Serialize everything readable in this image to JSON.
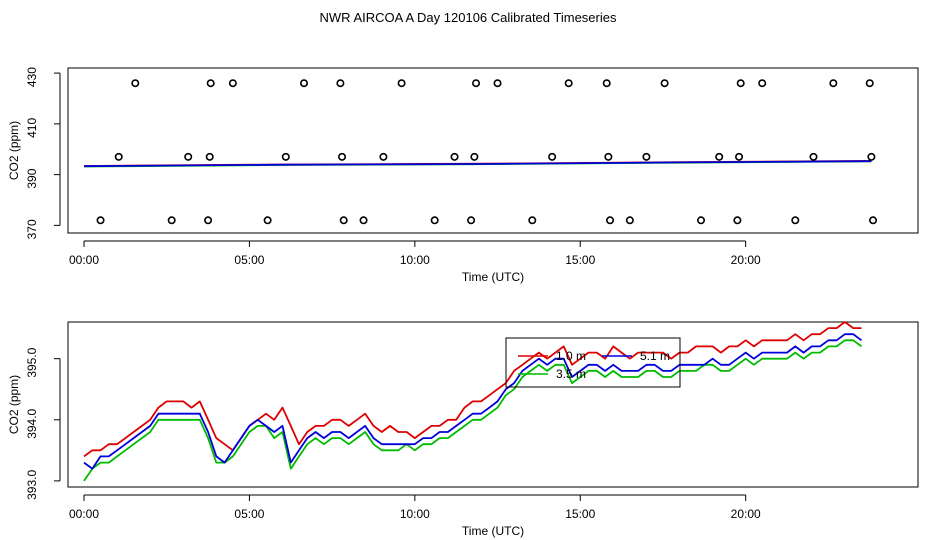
{
  "title": "NWR AIRCOA A  Day 120106  Calibrated Timeseries",
  "chart_data": [
    {
      "type": "scatter+line",
      "title": "NWR AIRCOA A  Day 120106  Calibrated Timeseries",
      "xlabel": "Time (UTC)",
      "ylabel": "CO2 (ppm)",
      "xlim": [
        0,
        24
      ],
      "ylim": [
        367,
        432
      ],
      "xticks": [
        0,
        5,
        10,
        15,
        20
      ],
      "xtick_labels": [
        "00:00",
        "05:00",
        "10:00",
        "15:00",
        "20:00"
      ],
      "yticks": [
        370,
        390,
        410,
        430
      ],
      "ytick_labels": [
        "370",
        "390",
        "410",
        "430"
      ],
      "calibration_points": {
        "marker": "open-circle",
        "x": [
          0.5,
          1.05,
          1.55,
          2.65,
          3.15,
          3.75,
          3.8,
          3.83,
          4.5,
          5.55,
          6.1,
          6.65,
          7.75,
          7.8,
          7.85,
          8.45,
          9.05,
          9.6,
          10.6,
          11.2,
          11.7,
          11.8,
          11.85,
          12.5,
          13.55,
          14.15,
          14.65,
          15.8,
          15.85,
          15.9,
          16.5,
          17.0,
          17.55,
          18.65,
          19.2,
          19.75,
          19.8,
          19.85,
          20.5,
          21.5,
          22.05,
          22.65,
          23.75,
          23.8,
          23.85
        ],
        "y": [
          372,
          397,
          426,
          372,
          397,
          372,
          397,
          426,
          426,
          372,
          397,
          426,
          426,
          397,
          372,
          372,
          397,
          426,
          372,
          397,
          372,
          397,
          426,
          426,
          372,
          397,
          426,
          426,
          397,
          372,
          372,
          397,
          426,
          372,
          397,
          372,
          397,
          426,
          426,
          372,
          397,
          426,
          426,
          397,
          372
        ]
      },
      "series": [
        {
          "name": "1.0 m",
          "color": "#dd0000",
          "x": [
            0,
            6,
            12,
            18,
            23.8
          ],
          "y": [
            393.4,
            394.0,
            394.3,
            394.9,
            395.4
          ]
        },
        {
          "name": "3.5 m",
          "color": "#00bb00",
          "x": [
            0,
            6,
            12,
            18,
            23.8
          ],
          "y": [
            393.2,
            393.8,
            394.1,
            394.7,
            395.2
          ]
        },
        {
          "name": "5.1 m",
          "color": "#0000dd",
          "x": [
            0,
            6,
            12,
            18,
            23.8
          ],
          "y": [
            393.3,
            393.9,
            394.2,
            394.8,
            395.3
          ]
        }
      ]
    },
    {
      "type": "line",
      "xlabel": "Time (UTC)",
      "ylabel": "CO2 (ppm)",
      "xlim": [
        0,
        24
      ],
      "ylim": [
        392.9,
        395.6
      ],
      "xticks": [
        0,
        5,
        10,
        15,
        20
      ],
      "xtick_labels": [
        "00:00",
        "05:00",
        "10:00",
        "15:00",
        "20:00"
      ],
      "yticks": [
        393.0,
        394.0,
        395.0
      ],
      "ytick_labels": [
        "393.0",
        "394.0",
        "395.0"
      ],
      "legend": {
        "position": "top-center",
        "entries": [
          "1.0 m",
          "3.5 m",
          "5.1 m"
        ]
      },
      "series": [
        {
          "name": "1.0 m",
          "color": "#dd0000",
          "x": [
            0.0,
            0.25,
            0.5,
            0.75,
            1.0,
            1.25,
            1.5,
            1.75,
            2.0,
            2.25,
            2.5,
            2.75,
            3.0,
            3.25,
            3.5,
            3.75,
            4.0,
            4.25,
            4.5,
            4.75,
            5.0,
            5.25,
            5.5,
            5.75,
            6.0,
            6.25,
            6.5,
            6.75,
            7.0,
            7.25,
            7.5,
            7.75,
            8.0,
            8.25,
            8.5,
            8.75,
            9.0,
            9.25,
            9.5,
            9.75,
            10.0,
            10.25,
            10.5,
            10.75,
            11.0,
            11.25,
            11.5,
            11.75,
            12.0,
            12.25,
            12.5,
            12.75,
            13.0,
            13.25,
            13.5,
            13.75,
            14.0,
            14.25,
            14.5,
            14.75,
            15.0,
            15.25,
            15.5,
            15.75,
            16.0,
            16.25,
            16.5,
            16.75,
            17.0,
            17.25,
            17.5,
            17.75,
            18.0,
            18.25,
            18.5,
            18.75,
            19.0,
            19.25,
            19.5,
            19.75,
            20.0,
            20.25,
            20.5,
            20.75,
            21.0,
            21.25,
            21.5,
            21.75,
            22.0,
            22.25,
            22.5,
            22.75,
            23.0,
            23.25,
            23.5
          ],
          "y": [
            393.4,
            393.5,
            393.5,
            393.6,
            393.6,
            393.7,
            393.8,
            393.9,
            394.0,
            394.2,
            394.3,
            394.3,
            394.3,
            394.2,
            394.3,
            394.0,
            393.7,
            393.6,
            393.5,
            393.7,
            393.9,
            394.0,
            394.1,
            394.0,
            394.2,
            393.9,
            393.6,
            393.8,
            393.9,
            393.9,
            394.0,
            394.0,
            393.9,
            394.0,
            394.1,
            393.9,
            393.8,
            393.9,
            393.8,
            393.8,
            393.7,
            393.8,
            393.9,
            393.9,
            394.0,
            394.0,
            394.2,
            394.3,
            394.3,
            394.4,
            394.5,
            394.6,
            394.8,
            394.9,
            395.0,
            395.1,
            395.0,
            395.1,
            395.2,
            394.9,
            395.0,
            395.1,
            395.1,
            395.0,
            395.2,
            395.1,
            395.0,
            395.1,
            395.1,
            395.1,
            395.1,
            395.0,
            395.1,
            395.1,
            395.2,
            395.2,
            395.2,
            395.1,
            395.2,
            395.2,
            395.3,
            395.2,
            395.3,
            395.3,
            395.3,
            395.3,
            395.4,
            395.3,
            395.4,
            395.4,
            395.5,
            395.5,
            395.6,
            395.5,
            395.5
          ]
        },
        {
          "name": "3.5 m",
          "color": "#00bb00",
          "x": [
            0.0,
            0.25,
            0.5,
            0.75,
            1.0,
            1.25,
            1.5,
            1.75,
            2.0,
            2.25,
            2.5,
            2.75,
            3.0,
            3.25,
            3.5,
            3.75,
            4.0,
            4.25,
            4.5,
            4.75,
            5.0,
            5.25,
            5.5,
            5.75,
            6.0,
            6.25,
            6.5,
            6.75,
            7.0,
            7.25,
            7.5,
            7.75,
            8.0,
            8.25,
            8.5,
            8.75,
            9.0,
            9.25,
            9.5,
            9.75,
            10.0,
            10.25,
            10.5,
            10.75,
            11.0,
            11.25,
            11.5,
            11.75,
            12.0,
            12.25,
            12.5,
            12.75,
            13.0,
            13.25,
            13.5,
            13.75,
            14.0,
            14.25,
            14.5,
            14.75,
            15.0,
            15.25,
            15.5,
            15.75,
            16.0,
            16.25,
            16.5,
            16.75,
            17.0,
            17.25,
            17.5,
            17.75,
            18.0,
            18.25,
            18.5,
            18.75,
            19.0,
            19.25,
            19.5,
            19.75,
            20.0,
            20.25,
            20.5,
            20.75,
            21.0,
            21.25,
            21.5,
            21.75,
            22.0,
            22.25,
            22.5,
            22.75,
            23.0,
            23.25,
            23.5
          ],
          "y": [
            393.0,
            393.2,
            393.3,
            393.3,
            393.4,
            393.5,
            393.6,
            393.7,
            393.8,
            394.0,
            394.0,
            394.0,
            394.0,
            394.0,
            394.0,
            393.7,
            393.3,
            393.3,
            393.4,
            393.6,
            393.8,
            393.9,
            393.9,
            393.7,
            393.8,
            393.2,
            393.4,
            393.6,
            393.7,
            393.6,
            393.7,
            393.7,
            393.6,
            393.7,
            393.8,
            393.6,
            393.5,
            393.5,
            393.5,
            393.6,
            393.5,
            393.6,
            393.6,
            393.7,
            393.7,
            393.8,
            393.9,
            394.0,
            394.0,
            394.1,
            394.2,
            394.4,
            394.5,
            394.7,
            394.8,
            394.9,
            394.8,
            394.9,
            394.9,
            394.6,
            394.7,
            394.8,
            394.8,
            394.7,
            394.8,
            394.7,
            394.7,
            394.7,
            394.8,
            394.8,
            394.7,
            394.7,
            394.8,
            394.8,
            394.8,
            394.9,
            394.9,
            394.8,
            394.8,
            394.9,
            395.0,
            394.9,
            395.0,
            395.0,
            395.0,
            395.0,
            395.1,
            395.0,
            395.1,
            395.1,
            395.2,
            395.2,
            395.3,
            395.3,
            395.2
          ]
        },
        {
          "name": "5.1 m",
          "color": "#0000dd",
          "x": [
            0.0,
            0.25,
            0.5,
            0.75,
            1.0,
            1.25,
            1.5,
            1.75,
            2.0,
            2.25,
            2.5,
            2.75,
            3.0,
            3.25,
            3.5,
            3.75,
            4.0,
            4.25,
            4.5,
            4.75,
            5.0,
            5.25,
            5.5,
            5.75,
            6.0,
            6.25,
            6.5,
            6.75,
            7.0,
            7.25,
            7.5,
            7.75,
            8.0,
            8.25,
            8.5,
            8.75,
            9.0,
            9.25,
            9.5,
            9.75,
            10.0,
            10.25,
            10.5,
            10.75,
            11.0,
            11.25,
            11.5,
            11.75,
            12.0,
            12.25,
            12.5,
            12.75,
            13.0,
            13.25,
            13.5,
            13.75,
            14.0,
            14.25,
            14.5,
            14.75,
            15.0,
            15.25,
            15.5,
            15.75,
            16.0,
            16.25,
            16.5,
            16.75,
            17.0,
            17.25,
            17.5,
            17.75,
            18.0,
            18.25,
            18.5,
            18.75,
            19.0,
            19.25,
            19.5,
            19.75,
            20.0,
            20.25,
            20.5,
            20.75,
            21.0,
            21.25,
            21.5,
            21.75,
            22.0,
            22.25,
            22.5,
            22.75,
            23.0,
            23.25,
            23.5
          ],
          "y": [
            393.3,
            393.2,
            393.4,
            393.4,
            393.5,
            393.6,
            393.7,
            393.8,
            393.9,
            394.1,
            394.1,
            394.1,
            394.1,
            394.1,
            394.1,
            393.8,
            393.4,
            393.3,
            393.5,
            393.7,
            393.9,
            394.0,
            393.9,
            393.8,
            393.9,
            393.3,
            393.5,
            393.7,
            393.8,
            393.7,
            393.8,
            393.8,
            393.7,
            393.8,
            393.9,
            393.7,
            393.6,
            393.6,
            393.6,
            393.6,
            393.6,
            393.7,
            393.7,
            393.8,
            393.8,
            393.9,
            394.0,
            394.1,
            394.1,
            394.2,
            394.3,
            394.5,
            394.6,
            394.8,
            394.9,
            395.0,
            394.9,
            395.0,
            395.0,
            394.7,
            394.8,
            394.9,
            394.9,
            394.8,
            394.9,
            394.8,
            394.8,
            394.8,
            394.9,
            394.9,
            394.8,
            394.8,
            394.9,
            394.9,
            394.9,
            394.9,
            395.0,
            394.9,
            394.9,
            395.0,
            395.1,
            395.0,
            395.1,
            395.1,
            395.1,
            395.1,
            395.2,
            395.1,
            395.2,
            395.2,
            395.3,
            395.3,
            395.4,
            395.4,
            395.3
          ]
        }
      ]
    }
  ]
}
